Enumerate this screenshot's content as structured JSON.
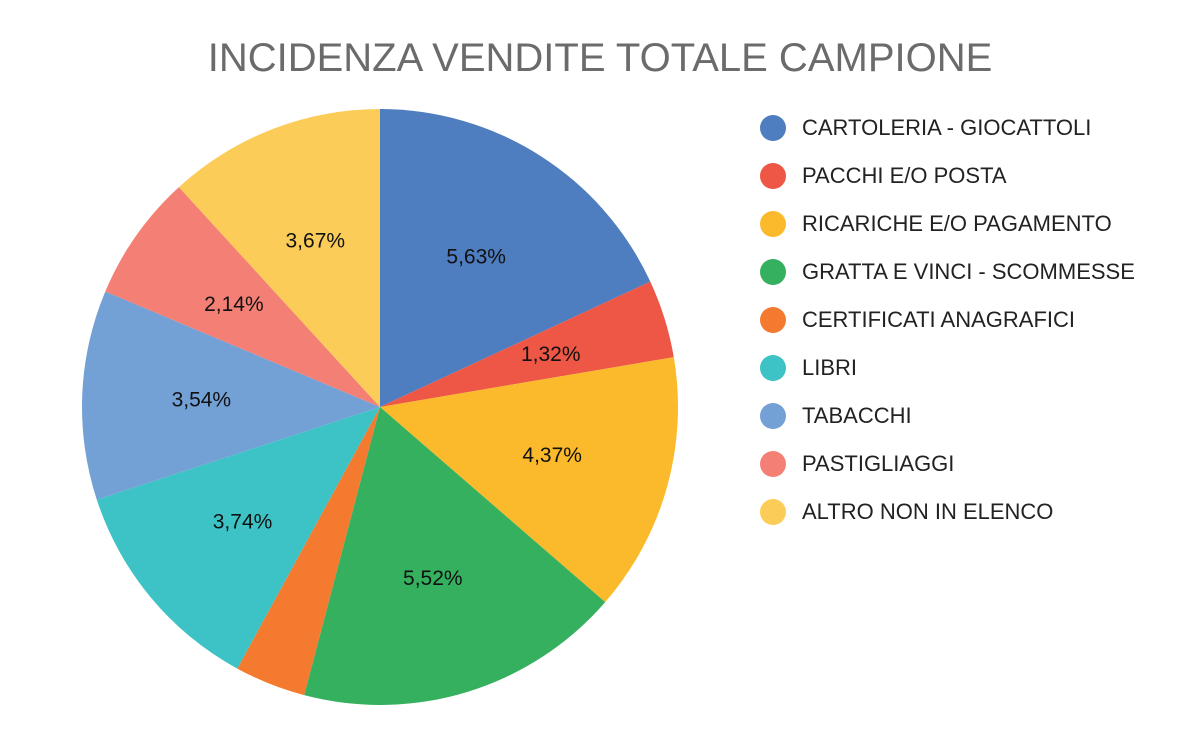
{
  "chart_data": {
    "type": "pie",
    "title": "INCIDENZA VENDITE TOTALE CAMPIONE",
    "slices": [
      {
        "label": "CARTOLERIA - GIOCATTOLI",
        "value": 5.63,
        "display": "5,63%",
        "color": "#4e7dc0"
      },
      {
        "label": "PACCHI E/O POSTA",
        "value": 1.32,
        "display": "1,32%",
        "color": "#ee5646"
      },
      {
        "label": "RICARICHE E/O PAGAMENTO",
        "value": 4.37,
        "display": "4,37%",
        "color": "#fbba2b"
      },
      {
        "label": "GRATTA E VINCI - SCOMMESSE",
        "value": 5.52,
        "display": "5,52%",
        "color": "#34b05f"
      },
      {
        "label": "CERTIFICATI ANAGRAFICI",
        "value": 1.2,
        "display": "",
        "color": "#f47a30"
      },
      {
        "label": "LIBRI",
        "value": 3.74,
        "display": "3,74%",
        "color": "#3dc3c5"
      },
      {
        "label": "TABACCHI",
        "value": 3.54,
        "display": "3,54%",
        "color": "#73a1d6"
      },
      {
        "label": "PASTIGLIAGGI",
        "value": 2.14,
        "display": "2,14%",
        "color": "#f47f74"
      },
      {
        "label": "ALTRO NON IN ELENCO",
        "value": 3.67,
        "display": "3,67%",
        "color": "#fbcd58"
      }
    ],
    "legend_position": "right"
  }
}
